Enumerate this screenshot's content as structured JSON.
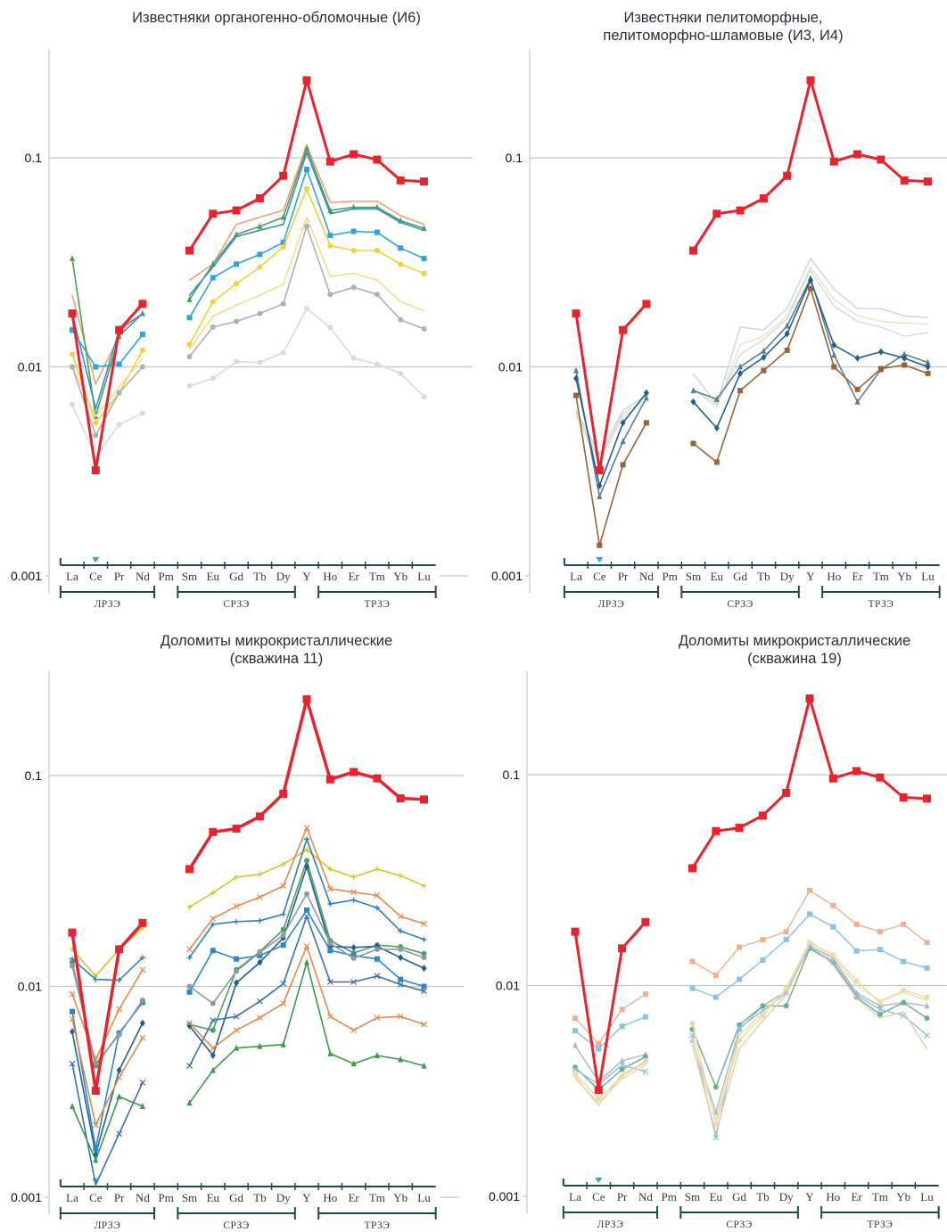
{
  "elements": [
    "La",
    "Ce",
    "Pr",
    "Nd",
    "Pm",
    "Sm",
    "Eu",
    "Gd",
    "Tb",
    "Dy",
    "Y",
    "Ho",
    "Er",
    "Tm",
    "Yb",
    "Lu"
  ],
  "groups": [
    {
      "label": "ЛРЗЭ",
      "from": "La",
      "to": "Nd"
    },
    {
      "label": "СРЗЭ",
      "from": "Sm",
      "to": "Dy"
    },
    {
      "label": "ТРЗЭ",
      "from": "Ho",
      "to": "Lu"
    }
  ],
  "y_ticks": [
    "0.1",
    "0.01",
    "0.001"
  ],
  "colors": {
    "reference": "#e8232e",
    "axis": "#1e4a4c",
    "grid": "#c8c8c8",
    "marker": "#29a8d8"
  },
  "chart_data": [
    {
      "type": "line",
      "title": "Известняки органогенно-обломочные (И6)",
      "yscale": "log",
      "ylim": [
        0.001,
        0.3
      ],
      "x": [
        "La",
        "Ce",
        "Pr",
        "Nd",
        "Pm",
        "Sm",
        "Eu",
        "Gd",
        "Tb",
        "Dy",
        "Y",
        "Ho",
        "Er",
        "Tm",
        "Yb",
        "Lu"
      ],
      "series": [
        {
          "name": "reference",
          "color": "#e8232e",
          "marker": "square",
          "width": 3,
          "values": [
            0.018,
            0.0032,
            0.015,
            0.02,
            null,
            0.036,
            0.054,
            0.056,
            0.064,
            0.082,
            0.235,
            0.096,
            0.104,
            0.098,
            0.078,
            0.077
          ]
        },
        {
          "name": "s1",
          "color": "#f0a27a",
          "marker": "none",
          "width": 1.6,
          "values": [
            0.022,
            0.0083,
            0.014,
            0.021,
            null,
            0.026,
            0.031,
            0.048,
            0.052,
            0.056,
            0.115,
            0.061,
            0.062,
            0.062,
            0.053,
            0.048
          ]
        },
        {
          "name": "s2",
          "color": "#4aa060",
          "marker": "triangle",
          "width": 1.6,
          "values": [
            0.033,
            0.0058,
            0.014,
            0.018,
            null,
            0.021,
            0.031,
            0.043,
            0.047,
            0.052,
            0.111,
            0.056,
            0.058,
            0.058,
            0.05,
            0.046
          ]
        },
        {
          "name": "s3",
          "color": "#3a8fbf",
          "marker": "none",
          "width": 1.6,
          "values": [
            0.018,
            0.0063,
            0.015,
            0.018,
            null,
            0.022,
            0.03,
            0.042,
            0.045,
            0.048,
            0.106,
            0.054,
            0.057,
            0.057,
            0.049,
            0.045
          ]
        },
        {
          "name": "s4",
          "color": "#2ea4dc",
          "marker": "square",
          "width": 1.6,
          "values": [
            0.015,
            0.01,
            0.0103,
            0.0143,
            null,
            0.0172,
            0.0267,
            0.031,
            0.0345,
            0.0394,
            0.088,
            0.0425,
            0.0445,
            0.044,
            0.037,
            0.033
          ]
        },
        {
          "name": "s5",
          "color": "#f2d03a",
          "marker": "circle",
          "width": 1.6,
          "values": [
            0.0115,
            0.0054,
            0.0075,
            0.012,
            null,
            0.0128,
            0.0205,
            0.025,
            0.03,
            0.0375,
            0.071,
            0.038,
            0.036,
            0.036,
            0.031,
            0.028
          ]
        },
        {
          "name": "s6",
          "color": "#f5dd8a",
          "marker": "none",
          "width": 1.6,
          "values": [
            0.01,
            0.0058,
            0.008,
            0.011,
            null,
            0.0122,
            0.0175,
            0.0197,
            0.022,
            0.0248,
            0.052,
            0.027,
            0.028,
            0.026,
            0.0205,
            0.0185
          ]
        },
        {
          "name": "s7",
          "color": "#a8b2b8",
          "marker": "circle",
          "width": 1.6,
          "values": [
            0.01,
            0.0047,
            0.0075,
            0.01,
            null,
            0.0112,
            0.0155,
            0.0165,
            0.018,
            0.02,
            0.047,
            0.0222,
            0.024,
            0.0222,
            0.0168,
            0.0152
          ]
        },
        {
          "name": "s8",
          "color": "#dadada",
          "marker": "circle",
          "width": 1.6,
          "values": [
            0.0066,
            0.0037,
            0.0053,
            0.006,
            null,
            0.0081,
            0.0088,
            0.0106,
            0.0105,
            0.0117,
            0.019,
            0.0154,
            0.011,
            0.0103,
            0.0093,
            0.0072
          ]
        }
      ]
    },
    {
      "type": "line",
      "title": "Известняки пелитоморфные, пелитоморфно-шламовые (И3, И4)",
      "yscale": "log",
      "ylim": [
        0.001,
        0.3
      ],
      "x": [
        "La",
        "Ce",
        "Pr",
        "Nd",
        "Pm",
        "Sm",
        "Eu",
        "Gd",
        "Tb",
        "Dy",
        "Y",
        "Ho",
        "Er",
        "Tm",
        "Yb",
        "Lu"
      ],
      "series": [
        {
          "name": "reference",
          "color": "#e8232e",
          "marker": "square",
          "width": 3,
          "values": [
            0.018,
            0.0032,
            0.015,
            0.02,
            null,
            0.036,
            0.054,
            0.056,
            0.064,
            0.082,
            0.235,
            0.096,
            0.104,
            0.098,
            0.078,
            0.077
          ]
        },
        {
          "name": "s1",
          "color": "#c5d6e6",
          "marker": "none",
          "width": 1.4,
          "values": [
            0.0062,
            0.0038,
            0.0062,
            0.0073,
            null,
            0.0093,
            0.0066,
            0.0155,
            0.015,
            0.019,
            0.033,
            0.0235,
            0.019,
            0.019,
            0.0175,
            0.0172
          ]
        },
        {
          "name": "s2",
          "color": "#e8e4c8",
          "marker": "none",
          "width": 1.4,
          "values": [
            0.0058,
            0.0035,
            0.0058,
            0.0068,
            null,
            0.0078,
            0.0064,
            0.0128,
            0.014,
            0.0175,
            0.03,
            0.021,
            0.0175,
            0.0165,
            0.0162,
            0.016
          ]
        },
        {
          "name": "s3",
          "color": "#cfe0d2",
          "marker": "none",
          "width": 1.4,
          "values": [
            0.006,
            0.0036,
            0.006,
            0.007,
            null,
            0.0078,
            0.0066,
            0.0115,
            0.0135,
            0.017,
            0.029,
            0.0195,
            0.0165,
            0.0155,
            0.014,
            0.0146
          ]
        },
        {
          "name": "s4",
          "color": "#5a7f8f",
          "marker": "triangle",
          "width": 1.6,
          "values": [
            0.0096,
            0.0024,
            0.0044,
            0.0071,
            null,
            0.0077,
            0.007,
            0.01,
            0.0119,
            0.0157,
            0.0265,
            0.0114,
            0.0068,
            0.0097,
            0.0115,
            0.0105
          ]
        },
        {
          "name": "s5",
          "color": "#1f5f94",
          "marker": "diamond",
          "width": 1.6,
          "values": [
            0.0088,
            0.0027,
            0.0054,
            0.0075,
            null,
            0.0068,
            0.0051,
            0.0093,
            0.0111,
            0.0144,
            0.026,
            0.0127,
            0.011,
            0.0118,
            0.011,
            0.01
          ]
        },
        {
          "name": "s6",
          "color": "#9a6238",
          "marker": "square",
          "width": 1.6,
          "values": [
            0.0073,
            0.0014,
            0.0034,
            0.0054,
            null,
            0.0043,
            0.0035,
            0.0077,
            0.0096,
            0.012,
            0.0237,
            0.01,
            0.0078,
            0.0098,
            0.0102,
            0.0093
          ]
        }
      ]
    },
    {
      "type": "line",
      "title": "Доломиты микрокристаллические (скважина 11)",
      "yscale": "log",
      "ylim": [
        0.001,
        0.3
      ],
      "x": [
        "La",
        "Ce",
        "Pr",
        "Nd",
        "Pm",
        "Sm",
        "Eu",
        "Gd",
        "Tb",
        "Dy",
        "Y",
        "Ho",
        "Er",
        "Tm",
        "Yb",
        "Lu"
      ],
      "series": [
        {
          "name": "reference",
          "color": "#e8232e",
          "marker": "square",
          "width": 3.5,
          "values": [
            0.018,
            0.0032,
            0.015,
            0.02,
            null,
            0.036,
            0.054,
            0.056,
            0.064,
            0.082,
            0.23,
            0.096,
            0.104,
            0.097,
            0.078,
            0.077
          ]
        },
        {
          "name": "s1",
          "color": "#d4c42a",
          "marker": "plus",
          "width": 1.6,
          "values": [
            0.015,
            0.0112,
            0.015,
            0.019,
            null,
            0.0238,
            0.0278,
            0.033,
            0.034,
            0.038,
            0.0445,
            0.036,
            0.033,
            0.036,
            0.0335,
            0.03
          ]
        },
        {
          "name": "s2",
          "color": "#e8884a",
          "marker": "x",
          "width": 1.6,
          "values": [
            0.0092,
            0.0045,
            0.0078,
            0.012,
            null,
            0.015,
            0.021,
            0.024,
            0.0265,
            0.03,
            0.0565,
            0.029,
            0.028,
            0.027,
            0.0215,
            0.0198
          ]
        },
        {
          "name": "s3",
          "color": "#2f7dc0",
          "marker": "plus",
          "width": 1.6,
          "values": [
            0.0135,
            0.0108,
            0.0107,
            0.0137,
            null,
            0.0137,
            0.0197,
            0.0203,
            0.0205,
            0.022,
            0.05,
            0.0246,
            0.0257,
            0.0236,
            0.0183,
            0.0167
          ]
        },
        {
          "name": "s4",
          "color": "#4aa060",
          "marker": "circle",
          "width": 1.6,
          "values": [
            0.013,
            0.0042,
            0.006,
            0.0084,
            null,
            0.0066,
            0.0062,
            0.012,
            0.0146,
            0.0186,
            0.0395,
            0.0165,
            0.0144,
            0.0157,
            0.0154,
            0.0143
          ]
        },
        {
          "name": "s5",
          "color": "#1f5f94",
          "marker": "diamond",
          "width": 1.6,
          "values": [
            0.0061,
            0.0016,
            0.004,
            0.0067,
            null,
            0.0065,
            0.0047,
            0.0104,
            0.013,
            0.017,
            0.037,
            0.0155,
            0.0153,
            0.0155,
            0.0137,
            0.0122
          ]
        },
        {
          "name": "s6",
          "color": "#2e86c8",
          "marker": "square",
          "width": 1.6,
          "values": [
            0.0076,
            0.0017,
            0.006,
            0.0084,
            null,
            0.0094,
            0.0148,
            0.0135,
            0.014,
            0.0157,
            0.023,
            0.0148,
            0.014,
            0.0135,
            0.0108,
            0.01
          ]
        },
        {
          "name": "s7",
          "color": "#8a9aa4",
          "marker": "circle",
          "width": 1.6,
          "values": [
            0.0125,
            0.0043,
            0.0059,
            0.0086,
            null,
            0.01,
            0.0083,
            0.0118,
            0.0145,
            0.0175,
            0.0275,
            0.016,
            0.0136,
            0.015,
            0.015,
            0.0137
          ]
        },
        {
          "name": "s8",
          "color": "#3a6fb0",
          "marker": "x",
          "width": 1.6,
          "values": [
            0.0043,
            0.0008,
            0.002,
            0.0035,
            null,
            0.0042,
            0.0069,
            0.0072,
            0.0085,
            0.0103,
            0.0215,
            0.0105,
            0.0105,
            0.0112,
            0.0102,
            0.0095
          ]
        },
        {
          "name": "s9",
          "color": "#e08a50",
          "marker": "x",
          "width": 1.6,
          "values": [
            0.007,
            0.0022,
            0.0037,
            0.0057,
            null,
            0.0067,
            0.0051,
            0.0062,
            0.0071,
            0.0083,
            0.0155,
            0.0072,
            0.0062,
            0.0071,
            0.0072,
            0.0066
          ]
        },
        {
          "name": "s10",
          "color": "#3a9a4a",
          "marker": "triangle",
          "width": 1.6,
          "values": [
            0.0027,
            0.0015,
            0.003,
            0.0027,
            null,
            0.0028,
            0.004,
            0.0051,
            0.0052,
            0.0053,
            0.013,
            0.0048,
            0.0043,
            0.0047,
            0.0045,
            0.0042
          ]
        }
      ]
    },
    {
      "type": "line",
      "title": "Доломиты микрокристаллические (скважина 19)",
      "yscale": "log",
      "ylim": [
        0.001,
        0.3
      ],
      "x": [
        "La",
        "Ce",
        "Pr",
        "Nd",
        "Pm",
        "Sm",
        "Eu",
        "Gd",
        "Tb",
        "Dy",
        "Y",
        "Ho",
        "Er",
        "Tm",
        "Yb",
        "Lu"
      ],
      "series": [
        {
          "name": "reference",
          "color": "#e8232e",
          "marker": "square",
          "width": 3,
          "values": [
            0.018,
            0.0032,
            0.015,
            0.02,
            null,
            0.036,
            0.054,
            0.056,
            0.064,
            0.082,
            0.23,
            0.096,
            0.104,
            0.097,
            0.078,
            0.077
          ]
        },
        {
          "name": "s1",
          "color": "#f0b090",
          "marker": "square",
          "width": 1.4,
          "values": [
            0.007,
            0.0053,
            0.0077,
            0.0091,
            null,
            0.013,
            0.0112,
            0.0152,
            0.0165,
            0.018,
            0.0282,
            0.024,
            0.0195,
            0.018,
            0.0195,
            0.016
          ]
        },
        {
          "name": "s2",
          "color": "#8cc0e4",
          "marker": "square",
          "width": 1.4,
          "values": [
            0.0061,
            0.005,
            0.0064,
            0.0071,
            null,
            0.0097,
            0.0088,
            0.0107,
            0.0132,
            0.0165,
            0.0218,
            0.019,
            0.0146,
            0.0148,
            0.013,
            0.0121
          ]
        },
        {
          "name": "s3",
          "color": "#a8b8c4",
          "marker": "triangle",
          "width": 1.4,
          "values": [
            0.0052,
            0.0035,
            0.0044,
            0.0047,
            null,
            0.0055,
            0.0025,
            0.0062,
            0.008,
            0.0094,
            0.0155,
            0.0135,
            0.0092,
            0.008,
            0.0083,
            0.008
          ]
        },
        {
          "name": "s4",
          "color": "#6aae8a",
          "marker": "circle",
          "width": 1.4,
          "values": [
            0.0041,
            0.0032,
            0.004,
            0.0046,
            null,
            0.0062,
            0.0033,
            0.0065,
            0.008,
            0.008,
            0.015,
            0.0128,
            0.0088,
            0.0073,
            0.0083,
            0.007
          ]
        },
        {
          "name": "s5",
          "color": "#8cc0e4",
          "marker": "x",
          "width": 1.4,
          "values": [
            0.004,
            0.0034,
            0.0042,
            0.0039,
            null,
            0.0058,
            0.0019,
            0.0063,
            0.0076,
            0.0092,
            0.0153,
            0.013,
            0.009,
            0.0077,
            0.0072,
            0.0058
          ]
        },
        {
          "name": "s6",
          "color": "#f5d8a0",
          "marker": "circle",
          "width": 1.4,
          "values": [
            0.0038,
            0.0029,
            0.0037,
            0.0044,
            null,
            0.0066,
            0.0022,
            0.0055,
            0.0072,
            0.0097,
            0.016,
            0.014,
            0.0105,
            0.0083,
            0.0095,
            0.0088
          ]
        },
        {
          "name": "s7",
          "color": "#eec9a8",
          "marker": "none",
          "width": 1.4,
          "values": [
            0.0037,
            0.0027,
            0.0038,
            0.0043,
            null,
            0.0052,
            0.002,
            0.005,
            0.0068,
            0.009,
            0.0158,
            0.0125,
            0.0087,
            0.007,
            0.0075,
            0.005
          ]
        },
        {
          "name": "s8",
          "color": "#e6e0a8",
          "marker": "none",
          "width": 1.4,
          "values": [
            0.0036,
            0.0028,
            0.0036,
            0.0042,
            null,
            0.0056,
            0.0023,
            0.0058,
            0.0074,
            0.0095,
            0.0162,
            0.0137,
            0.01,
            0.0085,
            0.0093,
            0.0085
          ]
        }
      ]
    }
  ]
}
